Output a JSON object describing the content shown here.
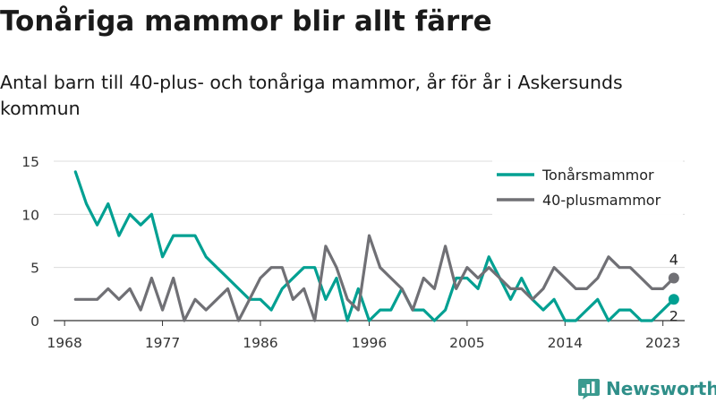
{
  "title": "Tonåriga mammor blir allt färre",
  "subtitle": "Antal barn till 40-plus- och tonåriga mammor, år för år i Askersunds kommun",
  "brand": "Newsworthy",
  "chart_data": {
    "type": "line",
    "title": "Tonåriga mammor blir allt färre",
    "subtitle": "Antal barn till 40-plus- och tonåriga mammor, år för år i Askersunds kommun",
    "x_ticks": [
      1968,
      1977,
      1986,
      1996,
      2005,
      2014,
      2023
    ],
    "y_ticks": [
      0,
      5,
      10,
      15
    ],
    "xlim": [
      1967,
      2025
    ],
    "ylim": [
      0,
      15
    ],
    "grid": true,
    "legend_position": "top-right",
    "x": [
      1969,
      1970,
      1971,
      1972,
      1973,
      1974,
      1975,
      1976,
      1977,
      1978,
      1979,
      1980,
      1981,
      1982,
      1983,
      1984,
      1985,
      1986,
      1987,
      1988,
      1989,
      1990,
      1991,
      1992,
      1993,
      1994,
      1995,
      1996,
      1997,
      1998,
      1999,
      2000,
      2001,
      2002,
      2003,
      2004,
      2005,
      2006,
      2007,
      2008,
      2009,
      2010,
      2011,
      2012,
      2013,
      2014,
      2015,
      2016,
      2017,
      2018,
      2019,
      2020,
      2021,
      2022,
      2023,
      2024
    ],
    "series": [
      {
        "name": "Tonårsmammor",
        "color": "#00a092",
        "end_label": "2",
        "values": [
          14,
          11,
          9,
          11,
          8,
          10,
          9,
          10,
          6,
          8,
          8,
          8,
          6,
          5,
          4,
          3,
          2,
          2,
          1,
          3,
          4,
          5,
          5,
          2,
          4,
          0,
          3,
          0,
          1,
          1,
          3,
          1,
          1,
          0,
          1,
          4,
          4,
          3,
          6,
          4,
          2,
          4,
          2,
          1,
          2,
          0,
          0,
          1,
          2,
          0,
          1,
          1,
          0,
          0,
          1,
          2
        ]
      },
      {
        "name": "40-plusmammor",
        "color": "#707075",
        "end_label": "4",
        "values": [
          2,
          2,
          2,
          3,
          2,
          3,
          1,
          4,
          1,
          4,
          0,
          2,
          1,
          2,
          3,
          0,
          2,
          4,
          5,
          5,
          2,
          3,
          0,
          7,
          5,
          2,
          1,
          8,
          5,
          4,
          3,
          1,
          4,
          3,
          7,
          3,
          5,
          4,
          5,
          4,
          3,
          3,
          2,
          3,
          5,
          4,
          3,
          3,
          4,
          6,
          5,
          5,
          4,
          3,
          3,
          4
        ]
      }
    ]
  }
}
